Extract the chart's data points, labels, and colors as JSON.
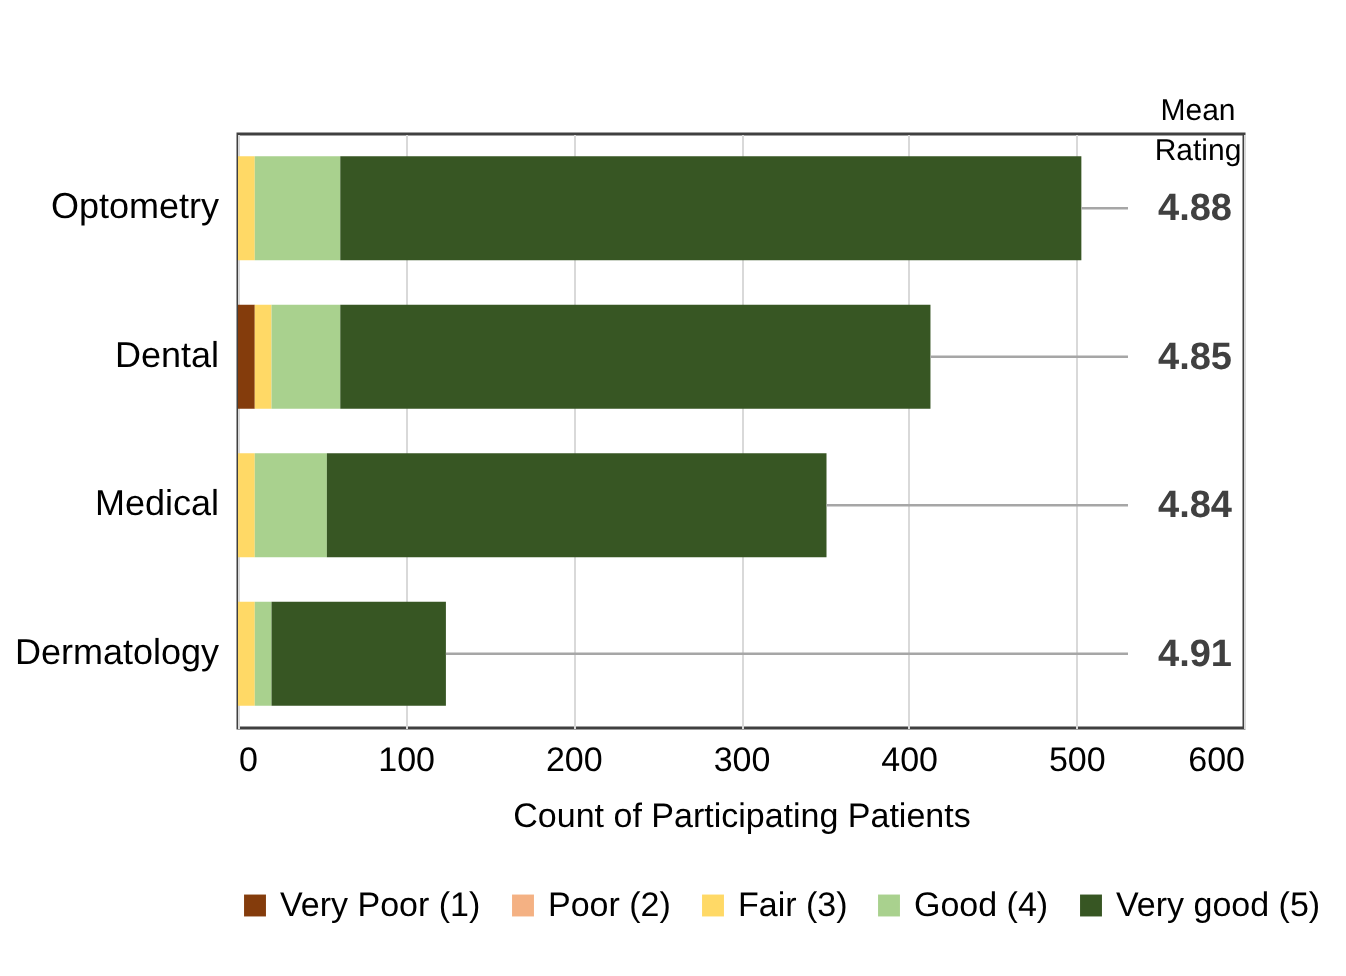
{
  "chart_data": {
    "type": "bar",
    "orientation": "horizontal",
    "stacked": true,
    "xlabel": "Count of Participating Patients",
    "categories": [
      "Optometry",
      "Dental",
      "Medical",
      "Dermatology"
    ],
    "series": [
      {
        "name": "Very Poor (1)",
        "color": "#843c0c",
        "values": [
          0,
          10,
          0,
          0
        ]
      },
      {
        "name": "Poor (2)",
        "color": "#f4b183",
        "values": [
          0,
          0,
          0,
          0
        ]
      },
      {
        "name": "Fair (3)",
        "color": "#ffd966",
        "values": [
          10,
          10,
          10,
          10
        ]
      },
      {
        "name": "Good (4)",
        "color": "#a9d18e",
        "values": [
          51,
          41,
          43,
          10
        ]
      },
      {
        "name": "Very good (5)",
        "color": "#375623",
        "values": [
          442,
          352,
          298,
          104
        ]
      }
    ],
    "xlim": [
      0,
      600
    ],
    "xticks": [
      0,
      100,
      200,
      300,
      400,
      500,
      600
    ],
    "grid": "x",
    "legend": "bottom",
    "annotations": [
      "Mean Rating",
      {
        "text": "4.88",
        "x": 503,
        "y": "Optometry"
      },
      {
        "text": "4.85",
        "x": 413,
        "y": "Dental"
      },
      {
        "text": "4.84",
        "x": 351,
        "y": "Medical"
      },
      {
        "text": "4.91",
        "x": 124,
        "y": "Dermatology"
      }
    ]
  }
}
